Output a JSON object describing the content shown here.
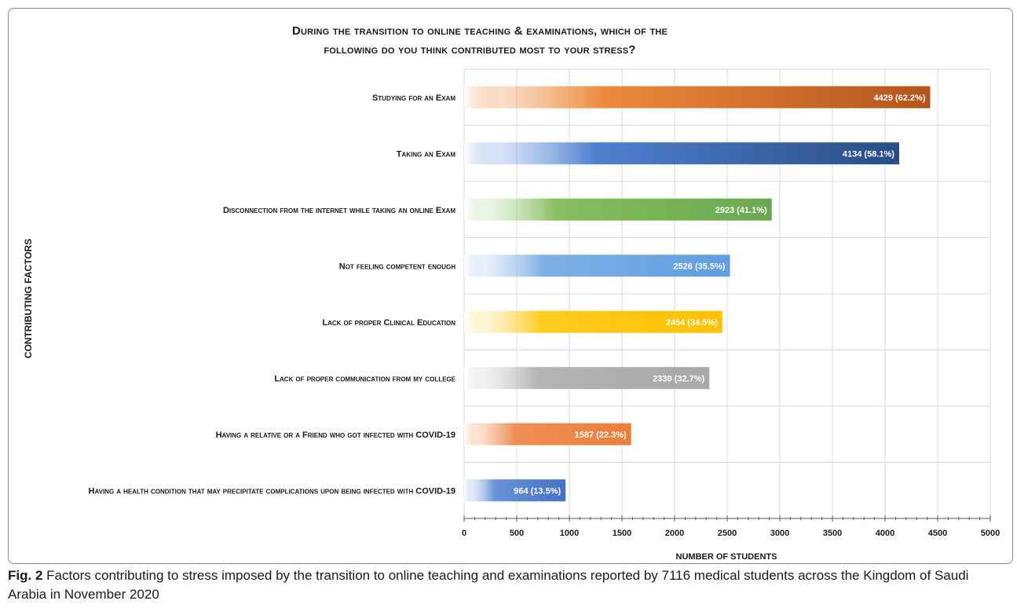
{
  "chart_data": {
    "type": "bar",
    "orientation": "horizontal",
    "title_line1": "During the transition to online teaching & examinations, which of the",
    "title_line2": "following do you think contributed most to your stress?",
    "xlabel": "NUMBER OF STUDENTS",
    "ylabel": "CONTRIBUTING FACTORS",
    "xlim": [
      0,
      5000
    ],
    "xticks": [
      0,
      500,
      1000,
      1500,
      2000,
      2500,
      3000,
      3500,
      4000,
      4500,
      5000
    ],
    "grid": true,
    "categories": [
      "Studying for an Exam",
      "Taking an Exam",
      "Disconnection from the internet while taking an online Exam",
      "Not feeling competent enough",
      "Lack of proper Clinical Education",
      "Lack of proper communication from my college",
      "Having a relative or a Friend who got infected with COVID-19",
      "Having a health condition that may precipitate complications upon being infected with COVID-19"
    ],
    "values": [
      4429,
      4134,
      2923,
      2526,
      2454,
      2330,
      1587,
      964
    ],
    "data_labels": [
      "4429 (62.2%)",
      "4134 (58.1%)",
      "2923 (41.1%)",
      "2526 (35.5%)",
      "2454 (34.5%)",
      "2330 (32.7%)",
      "1587 (22.3%)",
      "964 (13.5%)"
    ],
    "colors": [
      [
        "#f3a064",
        "#ee8a3c",
        "#b3541b"
      ],
      [
        "#8fb0e6",
        "#4e80d0",
        "#2b4c84"
      ],
      [
        "#c7e2b4",
        "#86be60",
        "#6aa84f"
      ],
      [
        "#b8d3f0",
        "#7fb0e6",
        "#5f9de0"
      ],
      [
        "#ffe489",
        "#ffcc21",
        "#ffc000"
      ],
      [
        "#dadada",
        "#b4b4b4",
        "#a8a8a8"
      ],
      [
        "#f5b58a",
        "#ef8f55",
        "#ec7e3c"
      ],
      [
        "#b0c7ec",
        "#6a93d8",
        "#4472c4"
      ]
    ]
  },
  "caption": {
    "label": "Fig. 2",
    "text": " Factors contributing to stress imposed by the transition to online teaching and examinations reported by 7116 medical students across the Kingdom of Saudi Arabia in November 2020"
  }
}
